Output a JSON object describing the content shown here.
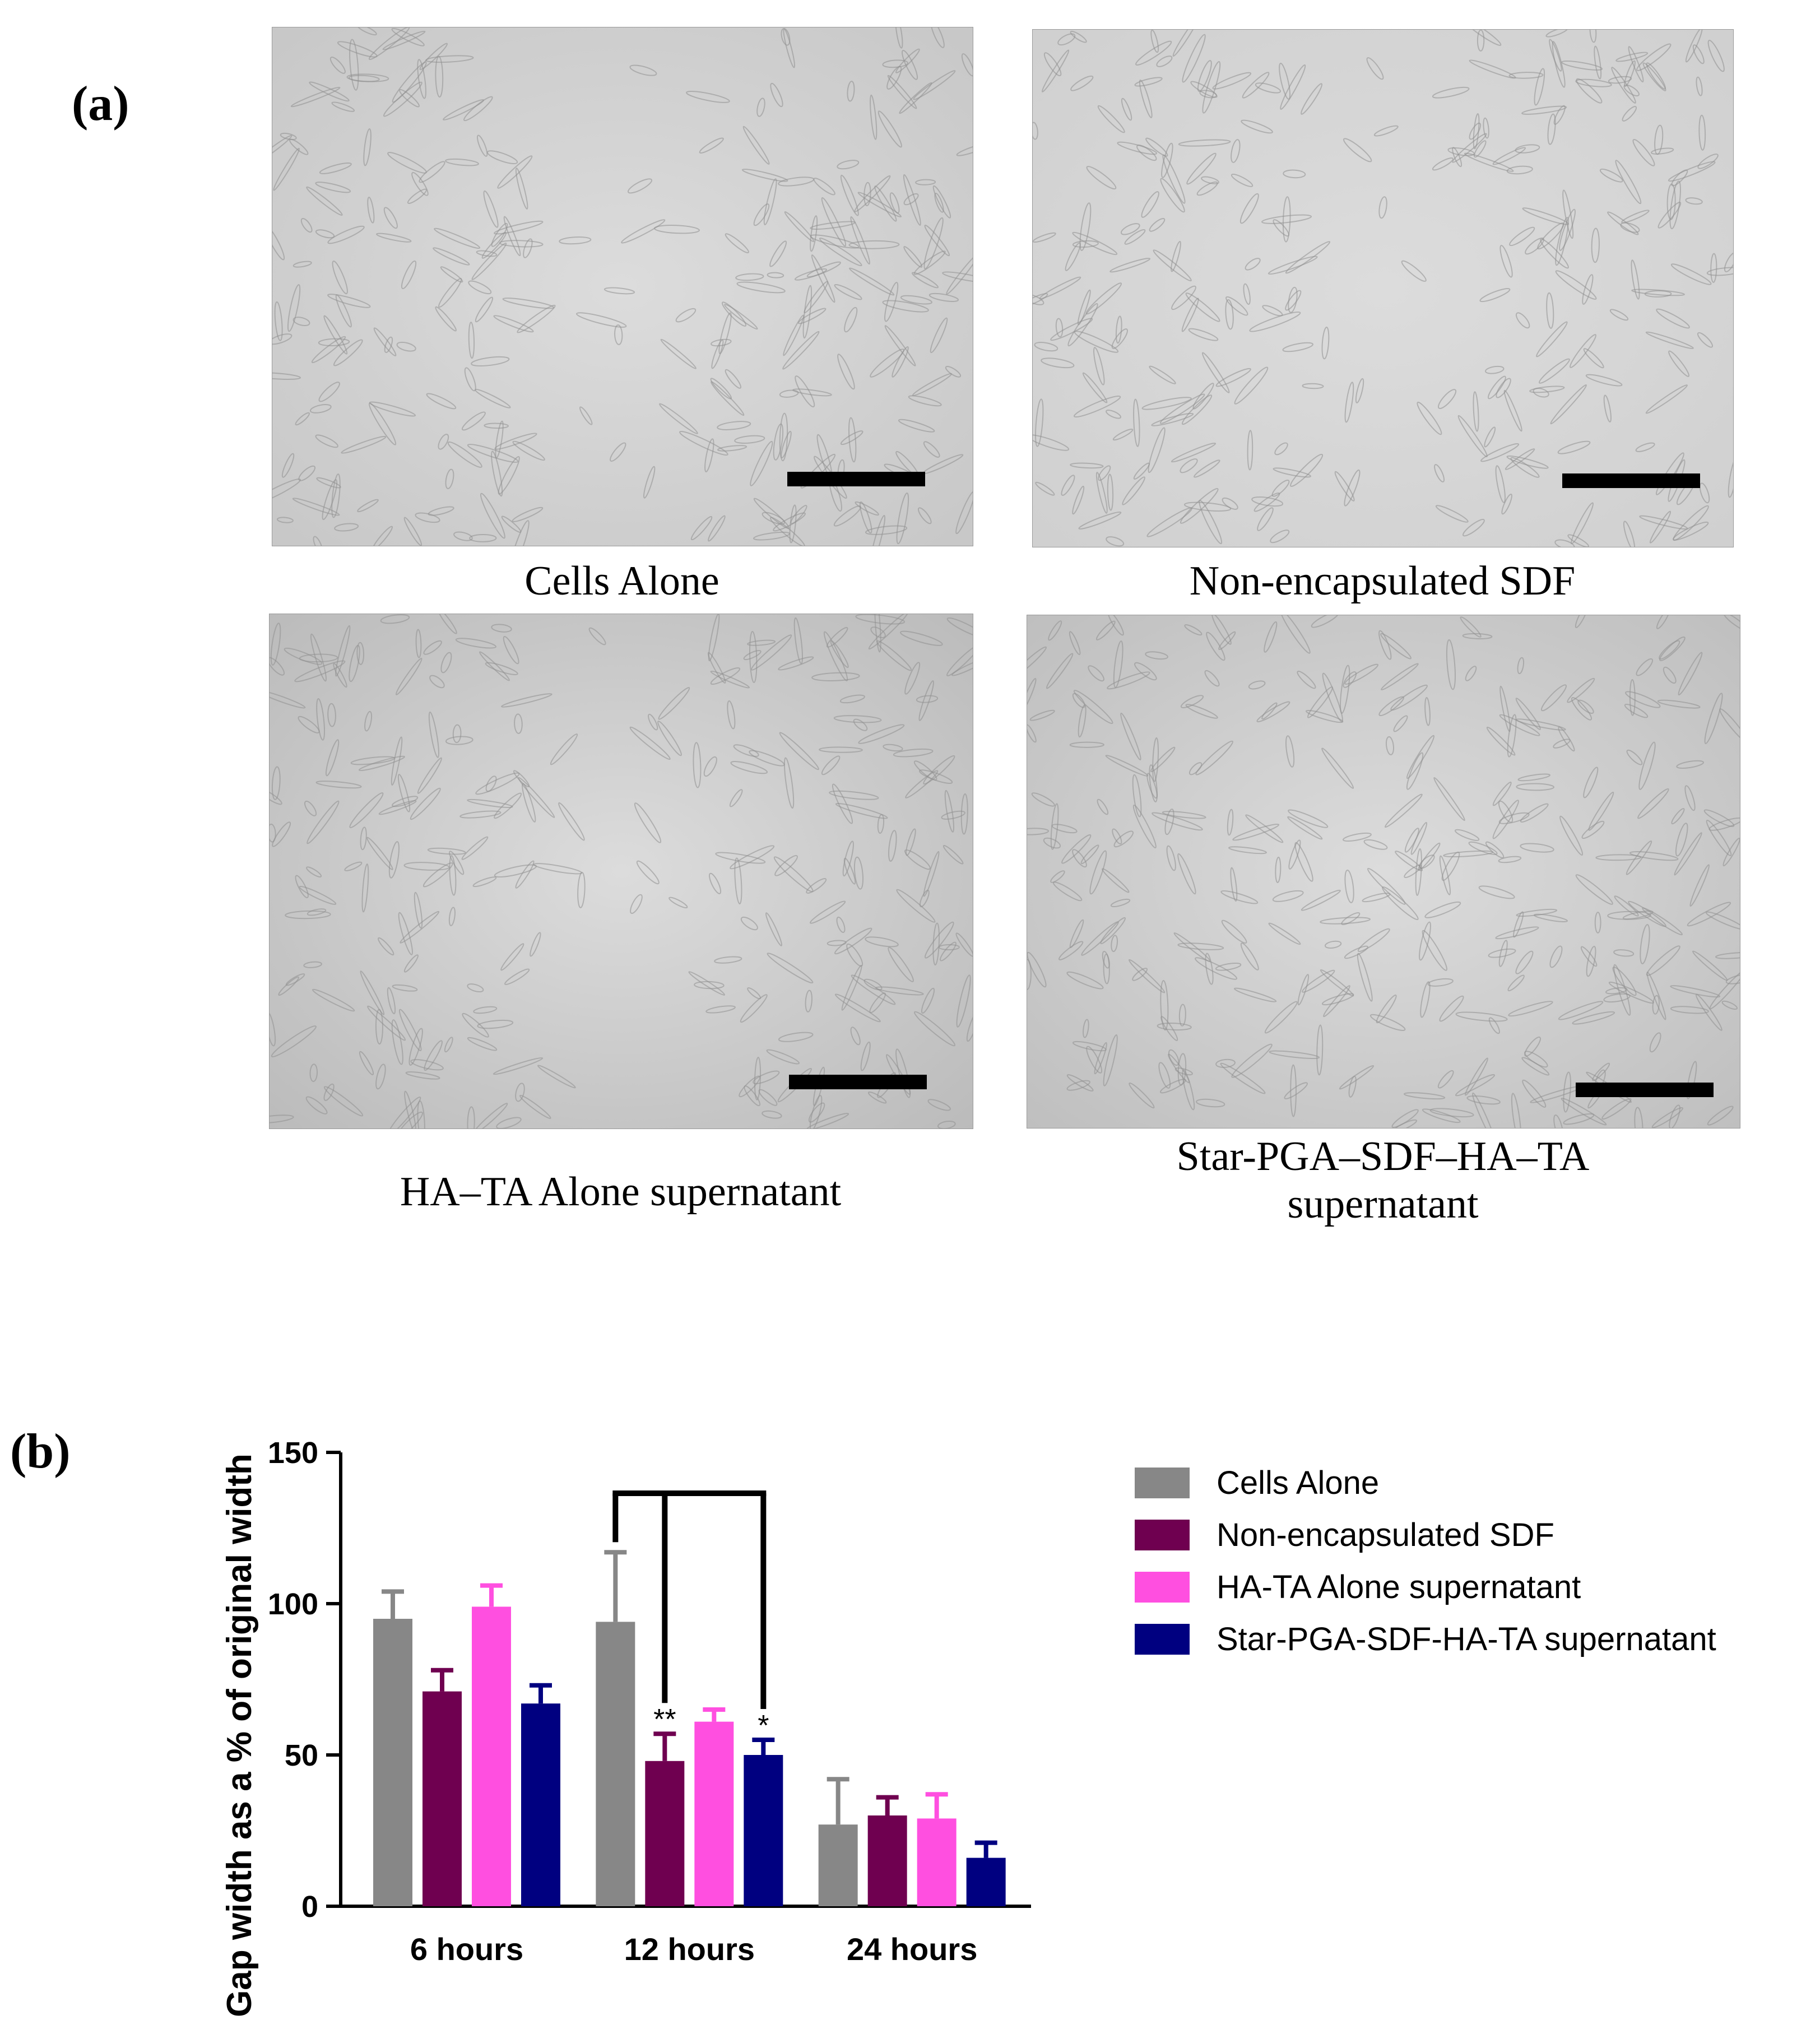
{
  "panel_a_label": "(a)",
  "panel_b_label": "(b)",
  "images": [
    {
      "caption": "Cells Alone",
      "icon": "brightfield-micrograph",
      "tone": "#c6c6c6"
    },
    {
      "caption": "Non-encapsulated SDF",
      "icon": "brightfield-micrograph",
      "tone": "#cfcfcf"
    },
    {
      "caption": "HA–TA Alone supernatant",
      "icon": "brightfield-micrograph",
      "tone": "#b9b9b9"
    },
    {
      "caption": "Star-PGA–SDF–HA–TA\nsupernatant",
      "icon": "brightfield-micrograph",
      "tone": "#bdbdbd"
    }
  ],
  "chart_data": {
    "type": "bar",
    "categories": [
      "6 hours",
      "12 hours",
      "24 hours"
    ],
    "ylabel": "Gap width as a % of original width",
    "xlabel": "",
    "ylim": [
      0,
      150
    ],
    "yticks": [
      0,
      50,
      100,
      150
    ],
    "series": [
      {
        "name": "Cells Alone",
        "color": "#878787",
        "values": [
          95,
          94,
          27
        ],
        "errors": [
          9,
          23,
          15
        ]
      },
      {
        "name": "Non-encapsulated SDF",
        "color": "#6f0050",
        "values": [
          71,
          48,
          30
        ],
        "errors": [
          7,
          9,
          6
        ]
      },
      {
        "name": "HA-TA Alone supernatant",
        "color": "#ff4fe0",
        "values": [
          99,
          61,
          29
        ],
        "errors": [
          7,
          4,
          8
        ]
      },
      {
        "name": "Star-PGA-SDF-HA-TA supernatant",
        "color": "#000080",
        "values": [
          67,
          50,
          16
        ],
        "errors": [
          6,
          5,
          5
        ]
      }
    ],
    "annotations": [
      {
        "text": "**",
        "category": "12 hours",
        "series": "Non-encapsulated SDF"
      },
      {
        "text": "*",
        "category": "12 hours",
        "series": "Star-PGA-SDF-HA-TA supernatant"
      }
    ],
    "significance_bracket": {
      "category": "12 hours",
      "from": "Cells Alone",
      "to": [
        "Non-encapsulated SDF",
        "Star-PGA-SDF-HA-TA supernatant"
      ]
    },
    "legend_position": "right"
  }
}
